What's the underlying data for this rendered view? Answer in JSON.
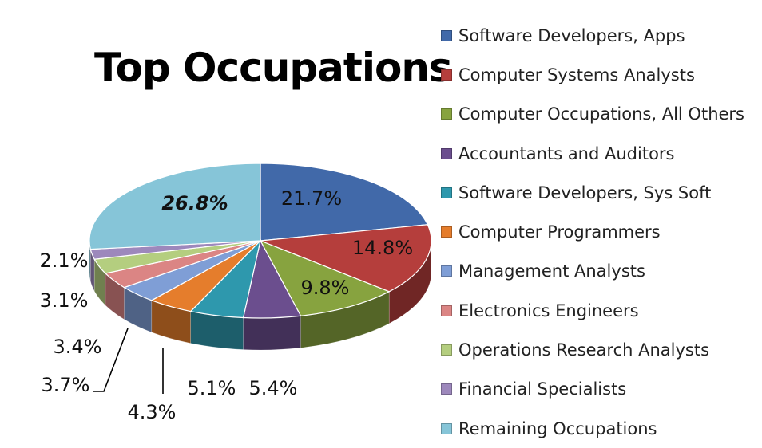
{
  "chart_data": {
    "type": "pie",
    "title": "Top Occupations",
    "categories": [
      "Software Developers, Apps",
      "Computer Systems Analysts",
      "Computer Occupations, All Others",
      "Accountants and Auditors",
      "Software Developers, Sys Soft",
      "Computer Programmers",
      "Management Analysts",
      "Electronics Engineers",
      "Operations Research Analysts",
      "Financial Specialists",
      "Remaining Occupations"
    ],
    "values": [
      21.7,
      14.8,
      9.8,
      5.4,
      5.1,
      4.3,
      3.7,
      3.4,
      3.1,
      2.1,
      26.8
    ],
    "data_labels": [
      "21.7%",
      "14.8%",
      "9.8%",
      "5.4%",
      "5.1%",
      "4.3%",
      "3.7%",
      "3.4%",
      "3.1%",
      "2.1%",
      "26.8%"
    ],
    "colors": [
      "#4169A9",
      "#B53E3C",
      "#87A33F",
      "#6B4E8E",
      "#2E98AD",
      "#E57D2C",
      "#7F9ED6",
      "#DB8584",
      "#B4CE7F",
      "#9D88BC",
      "#86C5D8"
    ],
    "legend_position": "right",
    "three_d": true
  }
}
